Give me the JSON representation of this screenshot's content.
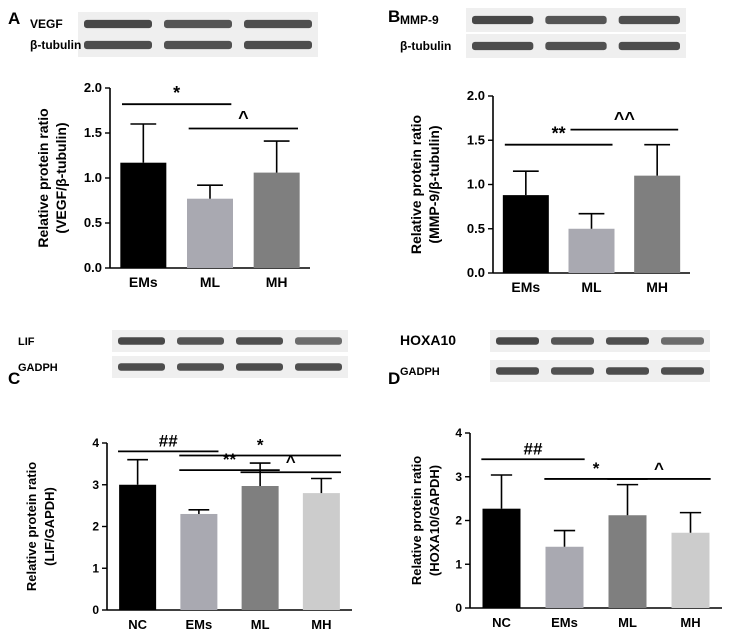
{
  "panels": [
    {
      "letter": "A",
      "blot": {
        "target": "VEGF",
        "loading": "β-tubulin",
        "lanes": 3
      },
      "chart_data": {
        "type": "bar",
        "categories": [
          "EMs",
          "ML",
          "MH"
        ],
        "values": [
          1.17,
          0.77,
          1.06
        ],
        "errors": [
          0.43,
          0.15,
          0.35
        ],
        "colors": [
          "#000000",
          "#a9a9b1",
          "#7f7f7f"
        ],
        "ylabel_lines": [
          "Relative protein ratio",
          "(VEGF/β-tubulin)"
        ],
        "xlabel": "",
        "ylim": [
          0,
          2.0
        ],
        "yticks": [
          "0.0",
          "0.5",
          "1.0",
          "1.5",
          "2.0"
        ],
        "ytick_values": [
          0,
          0.5,
          1.0,
          1.5,
          2.0
        ],
        "significance": [
          {
            "from": 0,
            "to": 1,
            "mark": "*",
            "y": 1.82
          },
          {
            "from": 1,
            "to": 2,
            "mark": "^",
            "y": 1.55
          }
        ]
      }
    },
    {
      "letter": "B",
      "blot": {
        "target": "MMP-9",
        "loading": "β-tubulin",
        "lanes": 3
      },
      "chart_data": {
        "type": "bar",
        "categories": [
          "EMs",
          "ML",
          "MH"
        ],
        "values": [
          0.88,
          0.5,
          1.1
        ],
        "errors": [
          0.27,
          0.17,
          0.35
        ],
        "colors": [
          "#000000",
          "#a9a9b1",
          "#7f7f7f"
        ],
        "ylabel_lines": [
          "Relative protein ratio",
          "(MMP-9/β-tubulin)"
        ],
        "xlabel": "",
        "ylim": [
          0,
          2.0
        ],
        "yticks": [
          "0.0",
          "0.5",
          "1.0",
          "1.5",
          "2.0"
        ],
        "ytick_values": [
          0,
          0.5,
          1.0,
          1.5,
          2.0
        ],
        "significance": [
          {
            "from": 0,
            "to": 1,
            "mark": "**",
            "y": 1.45
          },
          {
            "from": 1,
            "to": 2,
            "mark": "^^",
            "y": 1.62
          }
        ]
      }
    },
    {
      "letter": "C",
      "blot": {
        "target": "LIF",
        "loading": "GADPH",
        "lanes": 4
      },
      "chart_data": {
        "type": "bar",
        "categories": [
          "NC",
          "EMs",
          "ML",
          "MH"
        ],
        "values": [
          3.0,
          2.3,
          2.97,
          2.8
        ],
        "errors": [
          0.6,
          0.1,
          0.55,
          0.35
        ],
        "colors": [
          "#000000",
          "#a9a9b1",
          "#7f7f7f",
          "#cccccc"
        ],
        "ylabel_lines": [
          "Relative protein ratio",
          "(LIF/GAPDH)"
        ],
        "xlabel": "",
        "ylim": [
          0,
          4
        ],
        "yticks": [
          "0",
          "1",
          "2",
          "3",
          "4"
        ],
        "ytick_values": [
          0,
          1,
          2,
          3,
          4
        ],
        "significance": [
          {
            "from": 0,
            "to": 1,
            "mark": "##",
            "y": 3.8
          },
          {
            "from": 1,
            "to": 3,
            "mark": "*",
            "y": 3.7
          },
          {
            "from": 1,
            "to": 2,
            "mark": "**",
            "y": 3.35
          },
          {
            "from": 2,
            "to": 3,
            "mark": "^",
            "y": 3.3
          }
        ]
      }
    },
    {
      "letter": "D",
      "blot": {
        "target": "HOXA10",
        "loading": "GADPH",
        "lanes": 4
      },
      "chart_data": {
        "type": "bar",
        "categories": [
          "NC",
          "EMs",
          "ML",
          "MH"
        ],
        "values": [
          2.27,
          1.4,
          2.12,
          1.72
        ],
        "errors": [
          0.77,
          0.37,
          0.7,
          0.46
        ],
        "colors": [
          "#000000",
          "#a9a9b1",
          "#7f7f7f",
          "#cccccc"
        ],
        "ylabel_lines": [
          "Relative protein ratio",
          "(HOXA10/GAPDH)"
        ],
        "xlabel": "",
        "ylim": [
          0,
          4
        ],
        "yticks": [
          "0",
          "1",
          "2",
          "3",
          "4"
        ],
        "ytick_values": [
          0,
          1,
          2,
          3,
          4
        ],
        "significance": [
          {
            "from": 0,
            "to": 1,
            "mark": "##",
            "y": 3.4
          },
          {
            "from": 1,
            "to": 2,
            "mark": "*",
            "y": 2.95
          },
          {
            "from": 2,
            "to": 3,
            "mark": "^",
            "y": 2.95
          }
        ]
      }
    }
  ]
}
